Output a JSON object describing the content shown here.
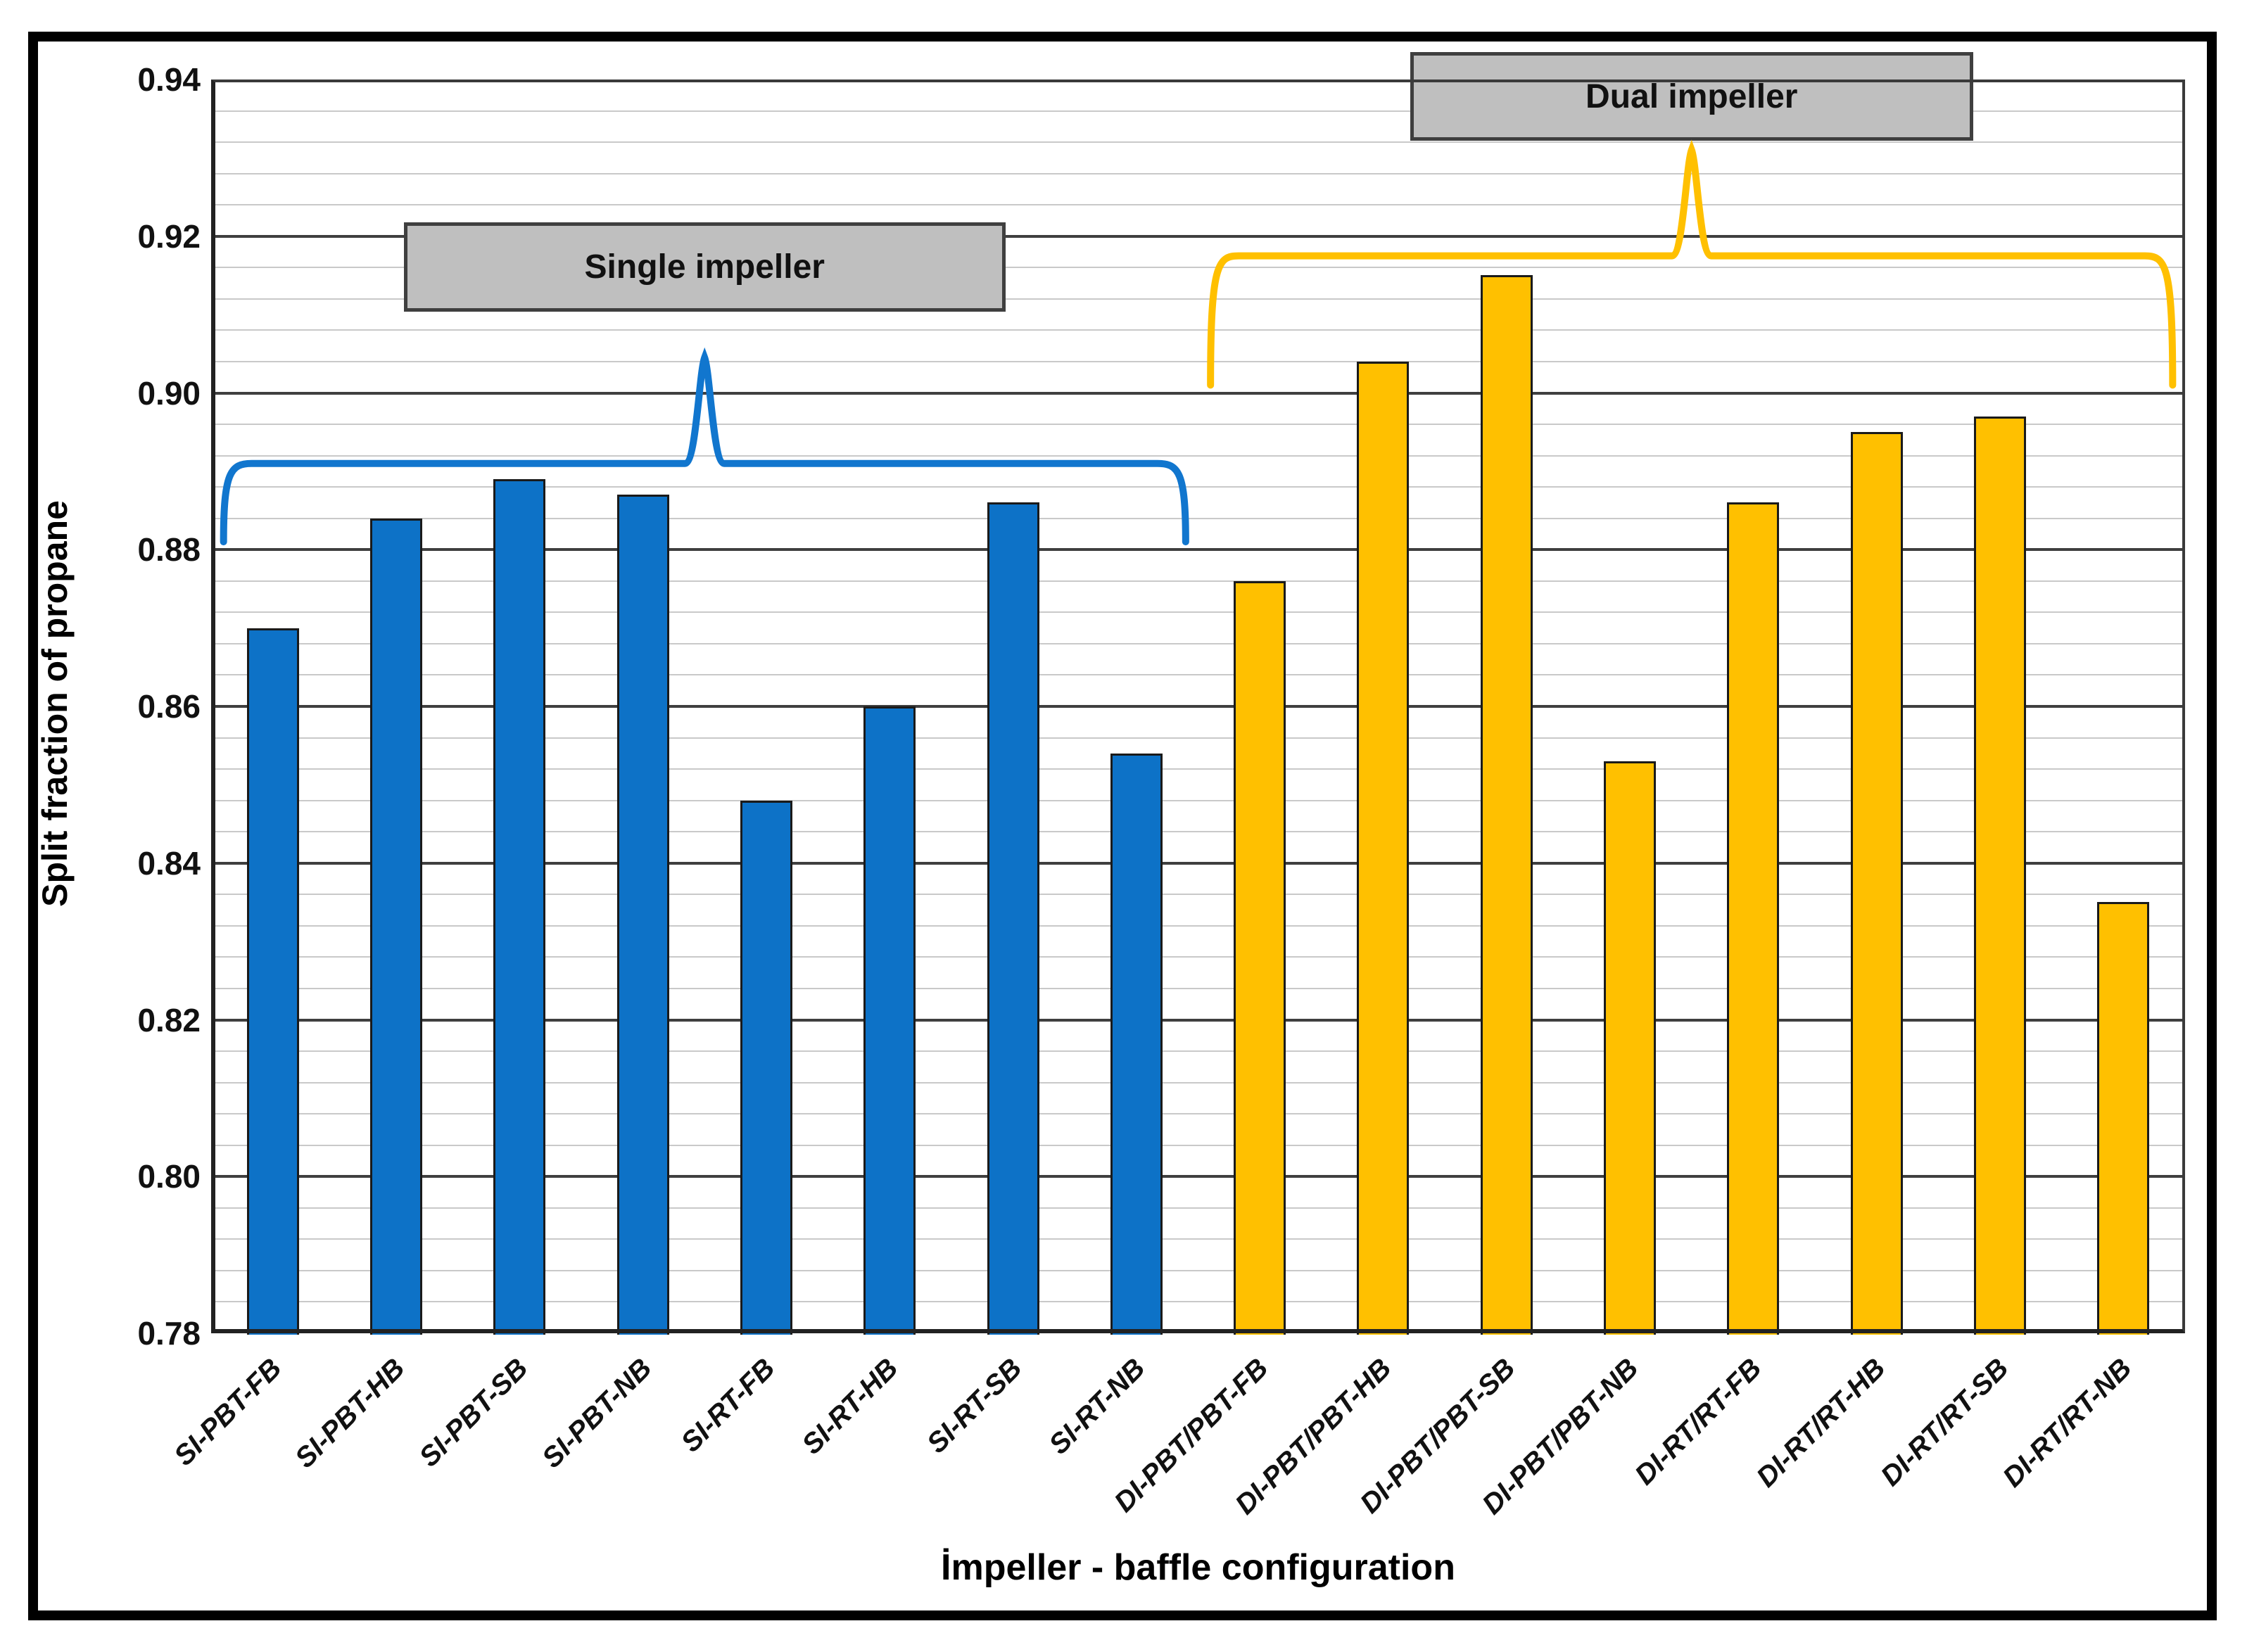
{
  "chart_data": {
    "type": "bar",
    "title": "",
    "xlabel": "İmpeller - baffle configuration",
    "ylabel": "Split fraction of propane",
    "ylim": [
      0.78,
      0.94
    ],
    "ytick_labels": [
      "0.78",
      "0.80",
      "0.82",
      "0.84",
      "0.86",
      "0.88",
      "0.90",
      "0.92",
      "0.94"
    ],
    "ytick_step": 0.02,
    "yminor_step": 0.004,
    "grid": {
      "major": true,
      "minor": true
    },
    "legend_position": "none",
    "bar_border_color": "#1A1A1A",
    "categories": [
      "SI-PBT-FB",
      "SI-PBT-HB",
      "SI-PBT-SB",
      "SI-PBT-NB",
      "SI-RT-FB",
      "SI-RT-HB",
      "SI-RT-SB",
      "SI-RT-NB",
      "DI-PBT/PBT-FB",
      "DI-PBT/PBT-HB",
      "DI-PBT/PBT-SB",
      "DI-PBT/PBT-NB",
      "DI-RT/RT-FB",
      "DI-RT/RT-HB",
      "DI-RT/RT-SB",
      "DI-RT/RT-NB"
    ],
    "series": [
      {
        "name": "Single impeller",
        "color": "#0D72C7",
        "category_range": [
          0,
          7
        ],
        "values": [
          0.87,
          0.884,
          0.889,
          0.887,
          0.848,
          0.86,
          0.886,
          0.854
        ],
        "brace": {
          "line": 0.891,
          "tip": 0.9045,
          "tail": 0.881,
          "color": "#1176CE"
        }
      },
      {
        "name": "Dual impeller",
        "color": "#FFC000",
        "category_range": [
          8,
          15
        ],
        "values": [
          0.876,
          0.904,
          0.915,
          0.853,
          0.886,
          0.895,
          0.897,
          0.835
        ],
        "brace": {
          "line": 0.9175,
          "tip": 0.931,
          "tail": 0.901,
          "color": "#FFC000"
        }
      }
    ],
    "annotation_boxes": [
      {
        "text": "Single impeller",
        "fill": "#BFBFBF",
        "border": "#3F3F3F"
      },
      {
        "text": "Dual impeller",
        "fill": "#BFBFBF",
        "border": "#3F3F3F"
      }
    ]
  }
}
